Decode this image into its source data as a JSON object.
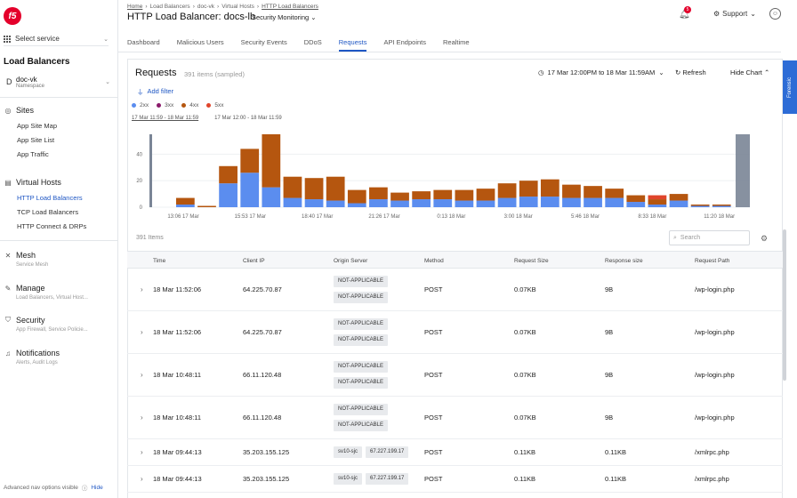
{
  "sidebar": {
    "logo": "f5",
    "select_service": "Select service",
    "section_title": "Load Balancers",
    "namespace": {
      "letter": "D",
      "name": "doc-vk",
      "label": "Namespace"
    },
    "sites": {
      "title": "Sites",
      "items": [
        "App Site Map",
        "App Site List",
        "App Traffic"
      ]
    },
    "virtual_hosts": {
      "title": "Virtual Hosts",
      "items": [
        "HTTP Load Balancers",
        "TCP Load Balancers",
        "HTTP Connect & DRPs"
      ]
    },
    "mesh": {
      "title": "Mesh",
      "sub": "Service Mesh"
    },
    "manage": {
      "title": "Manage",
      "sub": "Load Balancers, Virtual Host..."
    },
    "security": {
      "title": "Security",
      "sub": "App Firewall, Service Policie..."
    },
    "notifications": {
      "title": "Notifications",
      "sub": "Alerts, Audit Logs"
    },
    "adv_nav": "Advanced nav options visible",
    "hide": "Hide"
  },
  "header": {
    "breadcrumbs": [
      "Home",
      "Load Balancers",
      "doc-vk",
      "Virtual Hosts",
      "HTTP Load Balancers"
    ],
    "title": "HTTP Load Balancer: docs-lb",
    "monitor_select": "Security Monitoring",
    "notif_count": "5",
    "support": "Support"
  },
  "tabs": [
    "Dashboard",
    "Malicious Users",
    "Security Events",
    "DDoS",
    "Requests",
    "API Endpoints",
    "Realtime"
  ],
  "requests": {
    "title": "Requests",
    "count": "391 items (sampled)",
    "time_range": "17 Mar 12:00PM to 18 Mar 11:59AM",
    "refresh": "Refresh",
    "hide_chart": "Hide Chart",
    "add_filter": "Add filter",
    "legend": [
      {
        "label": "2xx",
        "color": "#5b8def"
      },
      {
        "label": "3xx",
        "color": "#8a1a6b"
      },
      {
        "label": "4xx",
        "color": "#b5560f"
      },
      {
        "label": "5xx",
        "color": "#e0452b"
      }
    ],
    "range_selected": "17 Mar 11:59 - 18 Mar 11:59",
    "range_other": "17 Mar 12:00 - 18 Mar 11:59",
    "items_count": "391 Items",
    "search_placeholder": "Search",
    "forensic_tab": "Forensic"
  },
  "chart_data": {
    "type": "bar",
    "stacked": true,
    "yticks": [
      "0",
      "20",
      "40"
    ],
    "ylim": [
      0,
      55
    ],
    "xticks": [
      "13:06 17 Mar",
      "15:53 17 Mar",
      "18:40 17 Mar",
      "21:26 17 Mar",
      "0:13 18 Mar",
      "3:00 18 Mar",
      "5:46 18 Mar",
      "8:33 18 Mar",
      "11:20 18 Mar"
    ],
    "series": [
      {
        "name": "2xx",
        "color": "#5b8def",
        "values": [
          2,
          0,
          18,
          26,
          15,
          7,
          6,
          5,
          3,
          6,
          5,
          6,
          6,
          5,
          5,
          7,
          8,
          8,
          7,
          7,
          7,
          4,
          2,
          5,
          1,
          1
        ]
      },
      {
        "name": "3xx",
        "color": "#8a1a6b",
        "values": [
          0,
          0,
          0,
          0,
          0,
          0,
          0,
          0,
          0,
          0,
          0,
          0,
          0,
          0,
          0,
          0,
          0,
          0,
          0,
          0,
          0,
          0,
          0,
          0,
          0,
          0
        ]
      },
      {
        "name": "4xx",
        "color": "#b5560f",
        "values": [
          5,
          1,
          13,
          18,
          40,
          16,
          16,
          18,
          10,
          9,
          6,
          6,
          7,
          8,
          9,
          11,
          12,
          13,
          10,
          9,
          7,
          5,
          4,
          5,
          1,
          1
        ]
      },
      {
        "name": "5xx",
        "color": "#e0452b",
        "values": [
          0,
          0,
          0,
          0,
          0,
          0,
          0,
          0,
          0,
          0,
          0,
          0,
          0,
          0,
          0,
          0,
          0,
          0,
          0,
          0,
          0,
          0,
          3,
          0,
          0,
          0
        ]
      }
    ]
  },
  "table": {
    "columns": [
      "Time",
      "Client IP",
      "Origin Server",
      "Method",
      "Request Size",
      "Response size",
      "Request Path"
    ],
    "rows": [
      {
        "time": "18 Mar 11:52:06",
        "ip": "64.225.70.87",
        "origin": [
          "NOT-APPLICABLE",
          "NOT-APPLICABLE"
        ],
        "method": "POST",
        "req_size": "0.07KB",
        "resp_size": "9B",
        "path": "/wp-login.php"
      },
      {
        "time": "18 Mar 11:52:06",
        "ip": "64.225.70.87",
        "origin": [
          "NOT-APPLICABLE",
          "NOT-APPLICABLE"
        ],
        "method": "POST",
        "req_size": "0.07KB",
        "resp_size": "9B",
        "path": "/wp-login.php"
      },
      {
        "time": "18 Mar 10:48:11",
        "ip": "66.11.120.48",
        "origin": [
          "NOT-APPLICABLE",
          "NOT-APPLICABLE"
        ],
        "method": "POST",
        "req_size": "0.07KB",
        "resp_size": "9B",
        "path": "/wp-login.php"
      },
      {
        "time": "18 Mar 10:48:11",
        "ip": "66.11.120.48",
        "origin": [
          "NOT-APPLICABLE",
          "NOT-APPLICABLE"
        ],
        "method": "POST",
        "req_size": "0.07KB",
        "resp_size": "9B",
        "path": "/wp-login.php"
      },
      {
        "time": "18 Mar 09:44:13",
        "ip": "35.203.155.125",
        "origin": [
          "sv10-sjc",
          "67.227.199.17"
        ],
        "method": "POST",
        "req_size": "0.11KB",
        "resp_size": "0.11KB",
        "path": "/xmlrpc.php"
      },
      {
        "time": "18 Mar 09:44:13",
        "ip": "35.203.155.125",
        "origin": [
          "sv10-sjc",
          "67.227.199.17"
        ],
        "method": "POST",
        "req_size": "0.11KB",
        "resp_size": "0.11KB",
        "path": "/xmlrpc.php"
      }
    ]
  }
}
